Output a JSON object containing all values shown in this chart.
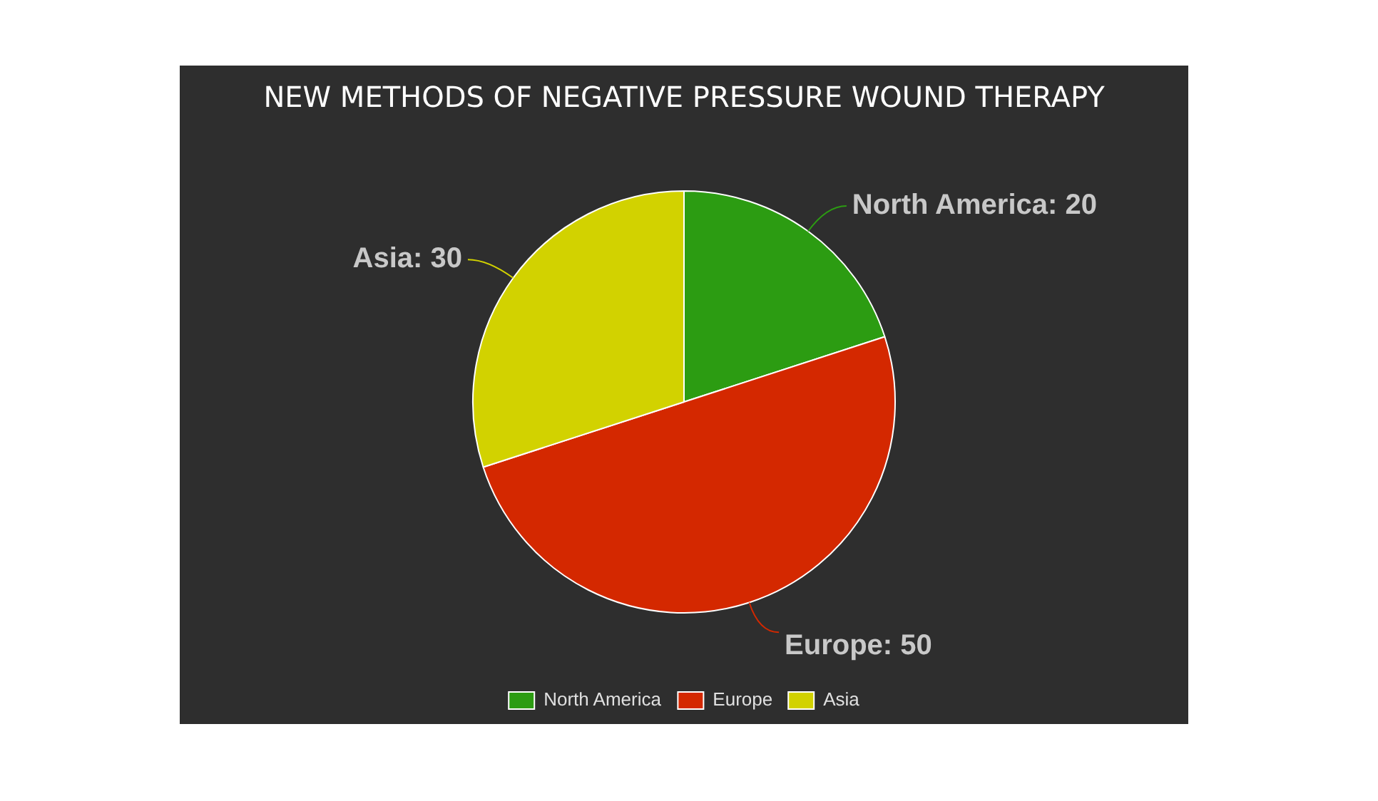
{
  "chart_data": {
    "type": "pie",
    "title": "NEW METHODS OF NEGATIVE PRESSURE WOUND THERAPY",
    "categories": [
      "North America",
      "Europe",
      "Asia"
    ],
    "values": [
      20,
      50,
      30
    ],
    "value_labels": [
      "North America: 20",
      "Europe: 50",
      "Asia: 30"
    ],
    "colors": [
      "#2c9c12",
      "#d42800",
      "#d2d200"
    ],
    "legend": "bottom"
  }
}
